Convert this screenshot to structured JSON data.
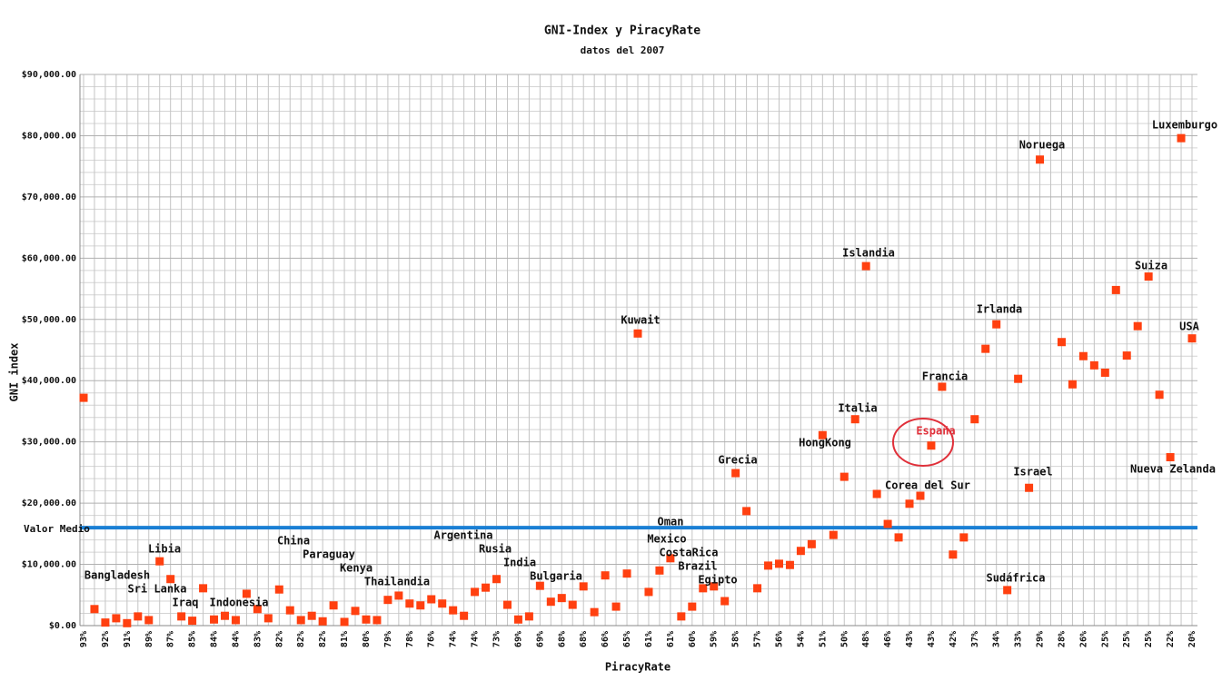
{
  "chart_data": {
    "type": "scatter",
    "title": "GNI-Index y PiracyRate",
    "subtitle": "datos del 2007",
    "xlabel": "PiracyRate",
    "ylabel": "GNI index",
    "color": "#ff4010",
    "grid": true,
    "categories": [
      "93%",
      null,
      "92%",
      null,
      "91%",
      null,
      "89%",
      null,
      "87%",
      null,
      "85%",
      null,
      "84%",
      null,
      "84%",
      null,
      "83%",
      null,
      "82%",
      null,
      "82%",
      null,
      "82%",
      null,
      "81%",
      null,
      "80%",
      null,
      "79%",
      null,
      "78%",
      null,
      "76%",
      null,
      "74%",
      null,
      "74%",
      null,
      "73%",
      null,
      "69%",
      null,
      "69%",
      null,
      "68%",
      null,
      "68%",
      null,
      "66%",
      null,
      "65%",
      null,
      "61%",
      null,
      "61%",
      null,
      "60%",
      null,
      "59%",
      null,
      "58%",
      null,
      "57%",
      null,
      "56%",
      null,
      "54%",
      null,
      "51%",
      null,
      "50%",
      null,
      "48%",
      null,
      "46%",
      null,
      "43%",
      null,
      "43%",
      null,
      "42%",
      null,
      "37%",
      null,
      "34%",
      null,
      "33%",
      null,
      "29%",
      null,
      "28%",
      null,
      "26%",
      null,
      "25%",
      null,
      "25%",
      null,
      "25%",
      null,
      "22%",
      null,
      "20%"
    ],
    "values": [
      37200,
      2700,
      500,
      1200,
      400,
      1500,
      900,
      10500,
      7600,
      1500,
      800,
      6100,
      1000,
      1600,
      900,
      5200,
      2700,
      1200,
      5900,
      2500,
      900,
      1600,
      700,
      3300,
      600,
      2400,
      1000,
      900,
      4200,
      4900,
      3600,
      3300,
      4300,
      3600,
      2500,
      1600,
      5500,
      6200,
      7600,
      3400,
      1000,
      1500,
      6500,
      3900,
      4500,
      3400,
      6400,
      2200,
      8200,
      3100,
      8500,
      47700,
      5500,
      9000,
      11000,
      1500,
      3100,
      6100,
      6400,
      4000,
      24900,
      18700,
      6100,
      9800,
      10100,
      9900,
      12200,
      13300,
      31100,
      14800,
      24300,
      33700,
      58700,
      21500,
      16600,
      14400,
      19900,
      21200,
      29400,
      39000,
      11600,
      14400,
      33700,
      45200,
      49200,
      5800,
      40300,
      22500,
      76100,
      null,
      46300,
      39400,
      44000,
      42500,
      41300,
      54800,
      44100,
      48900,
      57000,
      37700,
      27500,
      79600,
      46900
    ],
    "ylim": [
      0,
      90000
    ],
    "yticks": [
      {
        "value": 0,
        "label": "$0.00"
      },
      {
        "value": 10000,
        "label": "$10,000.00"
      },
      {
        "value": 20000,
        "label": "$20,000.00"
      },
      {
        "value": 30000,
        "label": "$30,000.00"
      },
      {
        "value": 40000,
        "label": "$40,000.00"
      },
      {
        "value": 50000,
        "label": "$50,000.00"
      },
      {
        "value": 60000,
        "label": "$60,000.00"
      },
      {
        "value": 70000,
        "label": "$70,000.00"
      },
      {
        "value": 80000,
        "label": "$80,000.00"
      },
      {
        "value": 90000,
        "label": "$90,000.00"
      }
    ],
    "mean": {
      "label": "Valor Medio",
      "value": 16000,
      "color": "#1a7fd4"
    },
    "annotations": [
      {
        "text": "Bangladesh",
        "index": 1
      },
      {
        "text": "Sri Lanka",
        "index": 5
      },
      {
        "text": "Libia",
        "index": 7
      },
      {
        "text": "Iraq",
        "index": 9
      },
      {
        "text": "Indonesia",
        "index": 14
      },
      {
        "text": "China",
        "index": 19
      },
      {
        "text": "Paraguay",
        "index": 22
      },
      {
        "text": "Kenya",
        "index": 25
      },
      {
        "text": "Thailandia",
        "index": 29
      },
      {
        "text": "Argentina",
        "index": 36
      },
      {
        "text": "Rusia",
        "index": 38
      },
      {
        "text": "India",
        "index": 40
      },
      {
        "text": "Bulgaria",
        "index": 43
      },
      {
        "text": "Kuwait",
        "index": 51
      },
      {
        "text": "Oman",
        "index": 54
      },
      {
        "text": "Mexico",
        "index": 53
      },
      {
        "text": "CostaRica",
        "index": 57
      },
      {
        "text": "Brazil",
        "index": 58
      },
      {
        "text": "Egipto",
        "index": 59
      },
      {
        "text": "Grecia",
        "index": 60
      },
      {
        "text": "HongKong",
        "index": 68
      },
      {
        "text": "Italia",
        "index": 71
      },
      {
        "text": "Islandia",
        "index": 72
      },
      {
        "text": "Corea del Sur",
        "index": 77
      },
      {
        "text": "España",
        "index": 78
      },
      {
        "text": "Francia",
        "index": 79
      },
      {
        "text": "Irlanda",
        "index": 84
      },
      {
        "text": "Sudáfrica",
        "index": 85
      },
      {
        "text": "Israel",
        "index": 87
      },
      {
        "text": "Noruega",
        "index": 88
      },
      {
        "text": "Suiza",
        "index": 98
      },
      {
        "text": "Nueva Zelanda",
        "index": 100
      },
      {
        "text": "Luxemburgo",
        "index": 101
      },
      {
        "text": "USA",
        "index": 102
      }
    ]
  }
}
